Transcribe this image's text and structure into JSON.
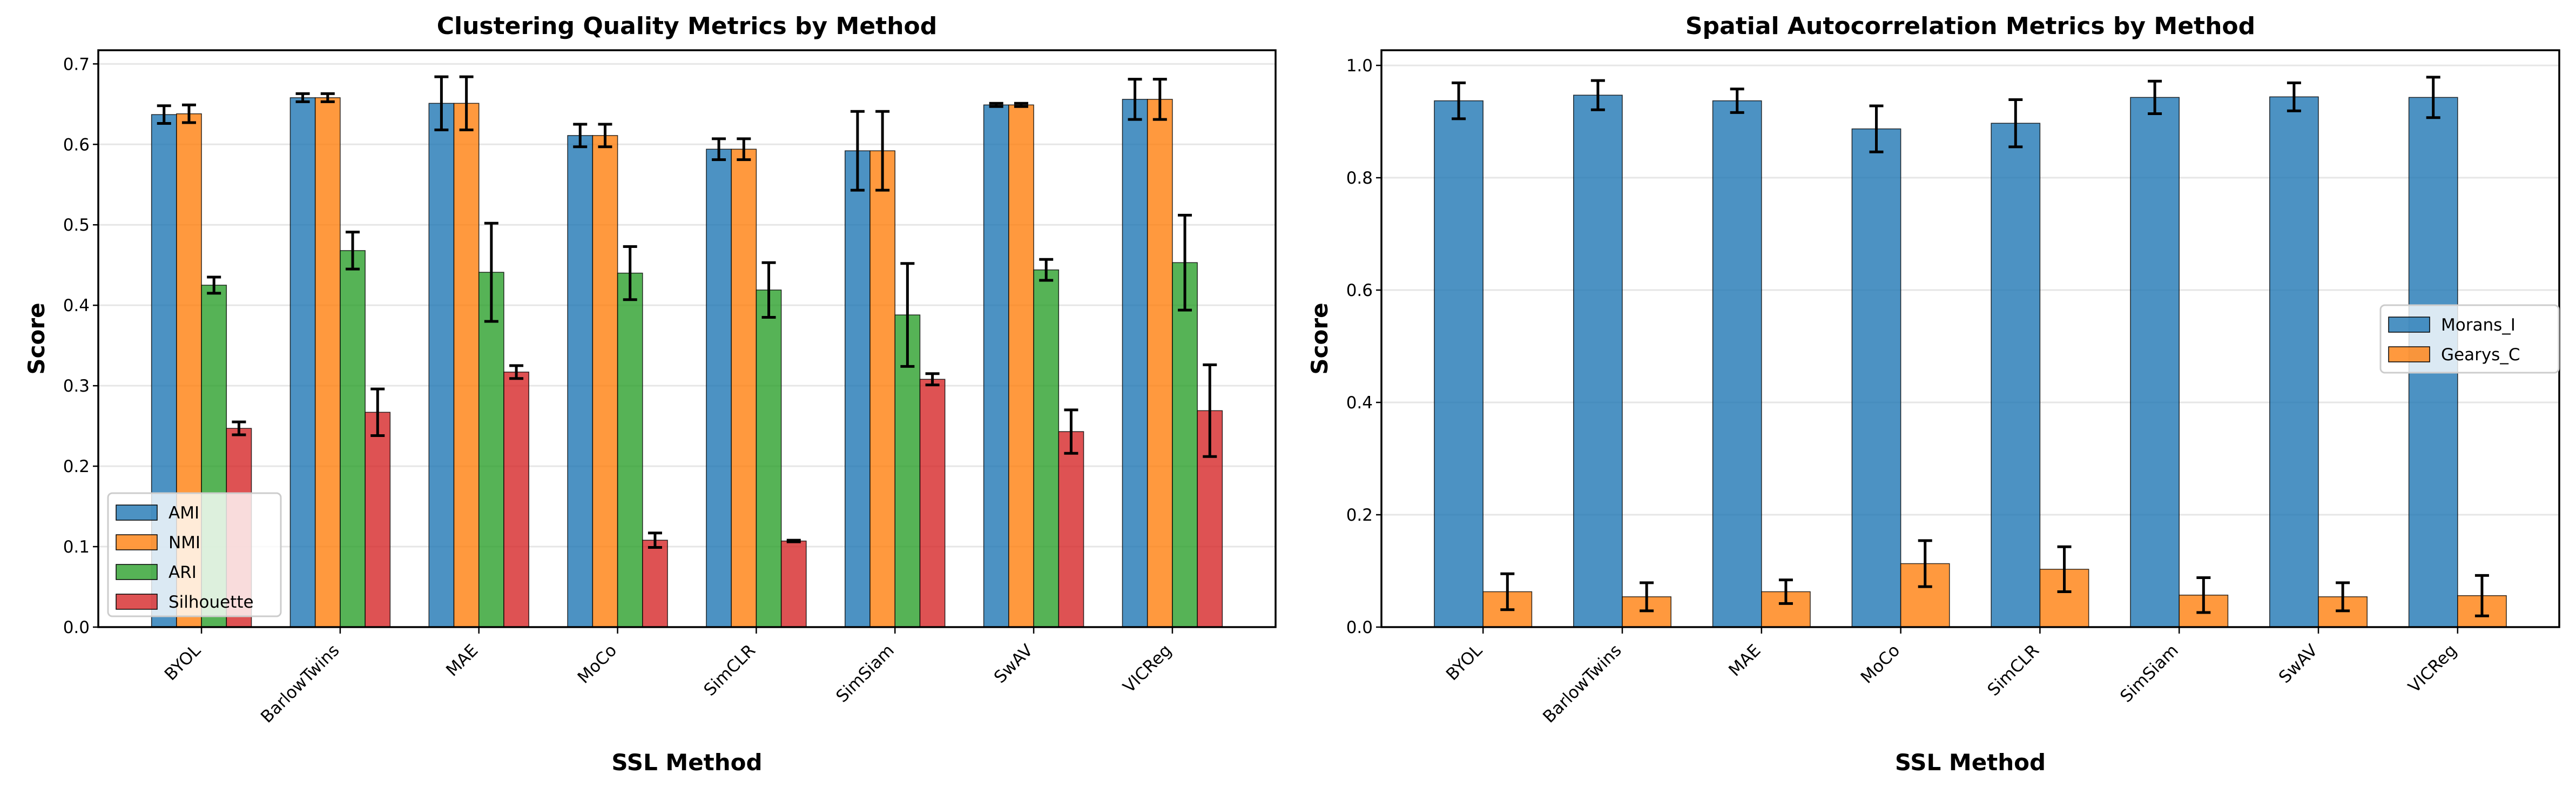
{
  "chart_data": [
    {
      "type": "bar",
      "title": "Clustering Quality Metrics by Method",
      "xlabel": "SSL Method",
      "ylabel": "Score",
      "ylim": [
        0,
        0.717
      ],
      "yticks": [
        "0.0",
        "0.1",
        "0.2",
        "0.3",
        "0.4",
        "0.5",
        "0.6",
        "0.7"
      ],
      "grid": true,
      "legend_position": "lower-left",
      "categories": [
        "BYOL",
        "BarlowTwins",
        "MAE",
        "MoCo",
        "SimCLR",
        "SimSiam",
        "SwAV",
        "VICReg"
      ],
      "series": [
        {
          "name": "AMI",
          "color": "#1f77b4",
          "values": [
            0.637,
            0.658,
            0.651,
            0.611,
            0.594,
            0.592,
            0.649,
            0.656
          ],
          "errors": [
            0.011,
            0.005,
            0.033,
            0.014,
            0.013,
            0.049,
            0.002,
            0.025
          ]
        },
        {
          "name": "NMI",
          "color": "#ff7f0e",
          "values": [
            0.638,
            0.658,
            0.651,
            0.611,
            0.594,
            0.592,
            0.649,
            0.656
          ],
          "errors": [
            0.011,
            0.005,
            0.033,
            0.014,
            0.013,
            0.049,
            0.002,
            0.025
          ]
        },
        {
          "name": "ARI",
          "color": "#2ca02c",
          "values": [
            0.425,
            0.468,
            0.441,
            0.44,
            0.419,
            0.388,
            0.444,
            0.453
          ],
          "errors": [
            0.01,
            0.023,
            0.061,
            0.033,
            0.034,
            0.064,
            0.013,
            0.059
          ]
        },
        {
          "name": "Silhouette",
          "color": "#d62728",
          "values": [
            0.247,
            0.267,
            0.317,
            0.108,
            0.107,
            0.308,
            0.243,
            0.269
          ],
          "errors": [
            0.008,
            0.029,
            0.008,
            0.009,
            0.001,
            0.007,
            0.027,
            0.057
          ]
        }
      ]
    },
    {
      "type": "bar",
      "title": "Spatial Autocorrelation Metrics by Method",
      "xlabel": "SSL Method",
      "ylabel": "Score",
      "ylim": [
        0,
        1.027
      ],
      "yticks": [
        "0.0",
        "0.2",
        "0.4",
        "0.6",
        "0.8",
        "1.0"
      ],
      "grid": true,
      "legend_position": "center-right",
      "categories": [
        "BYOL",
        "BarlowTwins",
        "MAE",
        "MoCo",
        "SimCLR",
        "SimSiam",
        "SwAV",
        "VICReg"
      ],
      "series": [
        {
          "name": "Morans_I",
          "color": "#1f77b4",
          "values": [
            0.937,
            0.947,
            0.937,
            0.887,
            0.897,
            0.943,
            0.944,
            0.943
          ],
          "errors": [
            0.032,
            0.026,
            0.021,
            0.041,
            0.042,
            0.029,
            0.025,
            0.036
          ]
        },
        {
          "name": "Gearys_C",
          "color": "#ff7f0e",
          "values": [
            0.063,
            0.054,
            0.063,
            0.113,
            0.103,
            0.057,
            0.054,
            0.056
          ],
          "errors": [
            0.032,
            0.025,
            0.021,
            0.041,
            0.04,
            0.031,
            0.025,
            0.036
          ]
        }
      ]
    }
  ]
}
